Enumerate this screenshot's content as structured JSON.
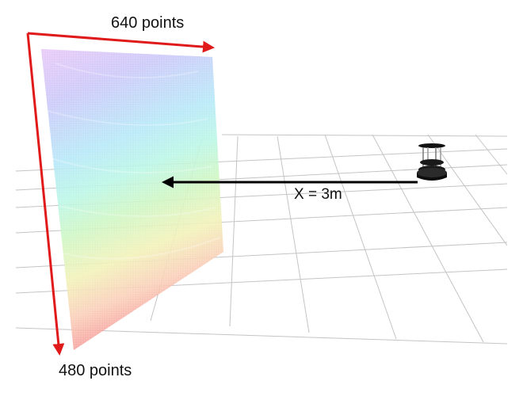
{
  "annotations": {
    "width_label": "640 points",
    "height_label": "480 points",
    "distance_label": "X = 3m"
  },
  "colors": {
    "dimension_arrow": "#e01a1a",
    "distance_arrow": "#000000",
    "grid": "#bdbdbd",
    "cloud_top": "#c89cf0",
    "cloud_mid": "#7fe0e8",
    "cloud_green": "#a8eaa0",
    "cloud_bottom": "#f25050"
  },
  "icons": {
    "robot": "robot-icon"
  }
}
